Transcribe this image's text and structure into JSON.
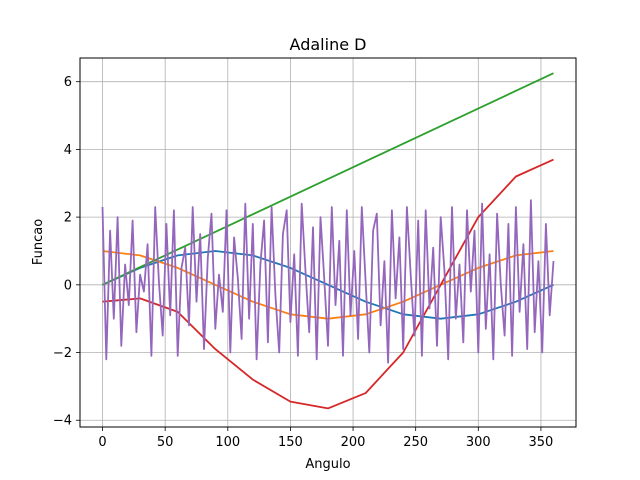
{
  "chart_data": {
    "type": "line",
    "title": "Adaline D",
    "xlabel": "Angulo",
    "ylabel": "Funcao",
    "xlim": [
      -18,
      378
    ],
    "ylim": [
      -4.2,
      6.7
    ],
    "x_ticks": [
      0,
      50,
      100,
      150,
      200,
      250,
      300,
      350
    ],
    "y_ticks": [
      -4,
      -2,
      0,
      2,
      4,
      6
    ],
    "grid": true,
    "legend": "none",
    "series": [
      {
        "color": "#1f77b4",
        "x": [
          0,
          30,
          60,
          90,
          120,
          150,
          180,
          210,
          240,
          270,
          300,
          330,
          360
        ],
        "y": [
          0,
          0.5,
          0.87,
          1,
          0.87,
          0.5,
          0,
          -0.5,
          -0.87,
          -1,
          -0.87,
          -0.5,
          0
        ]
      },
      {
        "color": "#ff7f0e",
        "x": [
          0,
          30,
          60,
          90,
          120,
          150,
          180,
          210,
          240,
          270,
          300,
          330,
          360
        ],
        "y": [
          1,
          0.87,
          0.5,
          0,
          -0.5,
          -0.87,
          -1,
          -0.87,
          -0.5,
          0,
          0.5,
          0.87,
          1
        ]
      },
      {
        "color": "#2ca02c",
        "x": [
          0,
          360
        ],
        "y": [
          0,
          6.25
        ]
      },
      {
        "color": "#d62728",
        "x": [
          0,
          30,
          60,
          90,
          120,
          150,
          180,
          210,
          240,
          270,
          300,
          330,
          360
        ],
        "y": [
          -0.5,
          -0.4,
          -0.8,
          -1.9,
          -2.8,
          -3.45,
          -3.65,
          -3.2,
          -2.0,
          0.0,
          2.0,
          3.2,
          3.7
        ]
      },
      {
        "color": "#9467bd",
        "x": [
          0,
          3,
          6,
          9,
          12,
          15,
          18,
          21,
          24,
          27,
          30,
          33,
          36,
          39,
          42,
          45,
          48,
          51,
          54,
          57,
          60,
          63,
          66,
          69,
          72,
          75,
          78,
          81,
          84,
          87,
          90,
          93,
          96,
          99,
          102,
          105,
          108,
          111,
          114,
          117,
          120,
          123,
          126,
          129,
          132,
          135,
          138,
          141,
          144,
          147,
          150,
          153,
          156,
          159,
          162,
          165,
          168,
          171,
          174,
          177,
          180,
          183,
          186,
          189,
          192,
          195,
          198,
          201,
          204,
          207,
          210,
          213,
          216,
          219,
          222,
          225,
          228,
          231,
          234,
          237,
          240,
          243,
          246,
          249,
          252,
          255,
          258,
          261,
          264,
          267,
          270,
          273,
          276,
          279,
          282,
          285,
          288,
          291,
          294,
          297,
          300,
          303,
          306,
          309,
          312,
          315,
          318,
          321,
          324,
          327,
          330,
          333,
          336,
          339,
          342,
          345,
          348,
          351,
          354,
          357,
          360
        ],
        "y": [
          2.3,
          -2.2,
          1.6,
          -1.0,
          2.0,
          -1.8,
          0.6,
          -0.6,
          1.9,
          -1.4,
          0.3,
          -0.2,
          1.2,
          -2.1,
          2.3,
          0.1,
          -1.5,
          1.8,
          -0.9,
          2.2,
          -2.1,
          0.5,
          1.1,
          -1.2,
          2.3,
          -0.5,
          1.5,
          -1.9,
          0.8,
          2.1,
          -1.3,
          0.3,
          -0.8,
          2.2,
          -2.0,
          1.4,
          0.2,
          -1.6,
          2.4,
          -1.0,
          1.8,
          -2.2,
          0.6,
          1.9,
          -1.7,
          2.3,
          -0.3,
          -2.0,
          1.5,
          2.2,
          -1.1,
          0.9,
          -2.1,
          2.4,
          0.4,
          -1.4,
          1.7,
          -2.2,
          2.0,
          0.2,
          -1.8,
          2.3,
          -0.6,
          1.3,
          -2.1,
          2.2,
          -0.9,
          1.0,
          -1.6,
          2.3,
          0.1,
          -2.0,
          1.6,
          2.1,
          -1.2,
          0.7,
          -2.3,
          2.2,
          -0.4,
          1.4,
          -1.9,
          2.3,
          0.3,
          -1.5,
          1.9,
          -2.1,
          2.2,
          -0.7,
          1.1,
          -1.8,
          2.0,
          0.4,
          -2.2,
          2.3,
          -1.0,
          0.6,
          -1.7,
          2.2,
          -0.2,
          1.6,
          -2.0,
          2.4,
          -1.3,
          0.9,
          -2.2,
          2.1,
          0.0,
          -1.5,
          1.8,
          -2.1,
          2.3,
          -0.8,
          1.2,
          -1.9,
          2.5,
          -1.4,
          0.7,
          -2.0,
          1.8,
          -0.9,
          0.7
        ]
      }
    ]
  }
}
